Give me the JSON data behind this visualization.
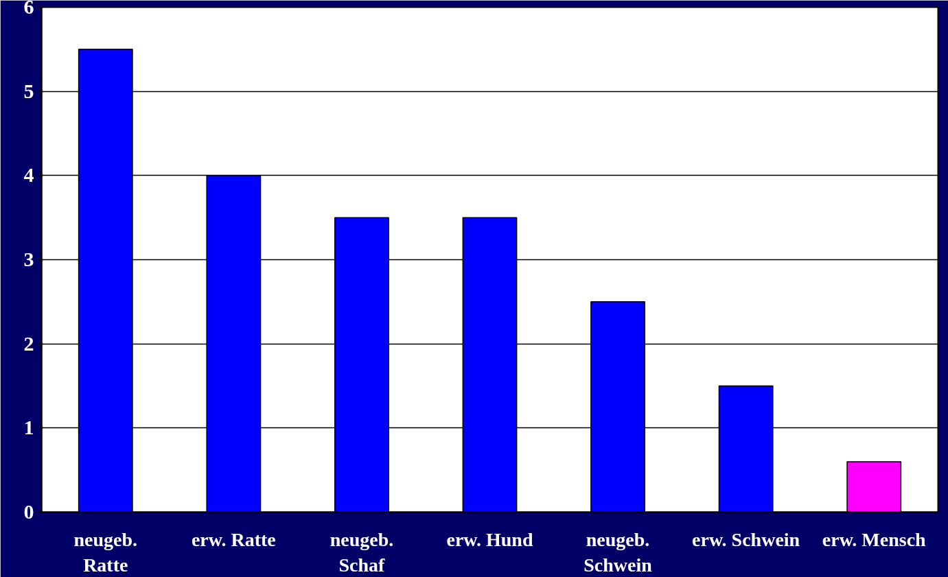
{
  "chart_data": {
    "type": "bar",
    "categories": [
      "neugeb.\nRatte",
      "erw. Ratte",
      "neugeb.\nSchaf",
      "erw. Hund",
      "neugeb.\nSchwein",
      "erw. Schwein",
      "erw. Mensch"
    ],
    "values": [
      5.5,
      4,
      3.5,
      3.5,
      2.5,
      1.5,
      0.6
    ],
    "colors": [
      "#0000ff",
      "#0000ff",
      "#0000ff",
      "#0000ff",
      "#0000ff",
      "#0000ff",
      "#ff00ff"
    ],
    "ylim": [
      0,
      6
    ],
    "yticks": [
      0,
      1,
      2,
      3,
      4,
      5,
      6
    ],
    "grid": "y"
  }
}
